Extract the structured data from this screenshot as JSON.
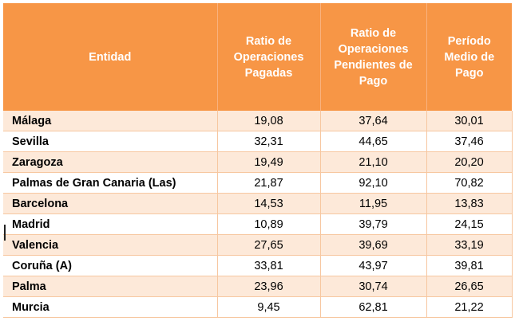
{
  "table": {
    "headers": [
      "Entidad",
      "Ratio de Operaciones Pagadas",
      "Ratio de Operaciones Pendientes de Pago",
      "Período Medio de Pago"
    ],
    "rows": [
      {
        "entidad": "Málaga",
        "pagadas": "19,08",
        "pendientes": "37,64",
        "periodo": "30,01"
      },
      {
        "entidad": "Sevilla",
        "pagadas": "32,31",
        "pendientes": "44,65",
        "periodo": "37,46"
      },
      {
        "entidad": "Zaragoza",
        "pagadas": "19,49",
        "pendientes": "21,10",
        "periodo": "20,20"
      },
      {
        "entidad": "Palmas de Gran Canaria (Las)",
        "pagadas": "21,87",
        "pendientes": "92,10",
        "periodo": "70,82"
      },
      {
        "entidad": "Barcelona",
        "pagadas": "14,53",
        "pendientes": "11,95",
        "periodo": "13,83"
      },
      {
        "entidad": "Madrid",
        "pagadas": "10,89",
        "pendientes": "39,79",
        "periodo": "24,15"
      },
      {
        "entidad": "Valencia",
        "pagadas": "27,65",
        "pendientes": "39,69",
        "periodo": "33,19"
      },
      {
        "entidad": "Coruña (A)",
        "pagadas": "33,81",
        "pendientes": "43,97",
        "periodo": "39,81"
      },
      {
        "entidad": "Palma",
        "pagadas": "23,96",
        "pendientes": "30,74",
        "periodo": "26,65"
      },
      {
        "entidad": "Murcia",
        "pagadas": "9,45",
        "pendientes": "62,81",
        "periodo": "21,22"
      }
    ]
  },
  "colors": {
    "header_bg": "#f79646",
    "row_band": "#fde9d9",
    "grid": "#f7c7a0"
  }
}
